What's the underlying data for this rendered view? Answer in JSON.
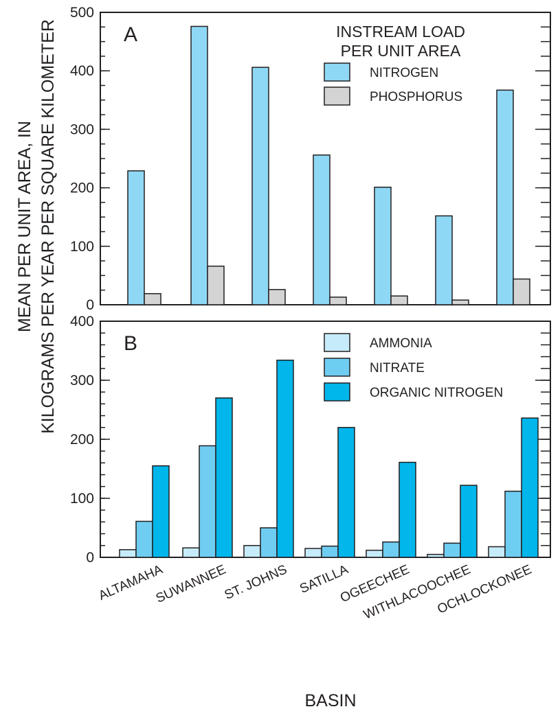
{
  "chart_data": [
    {
      "panel": "A",
      "type": "bar",
      "categories": [
        "ALTAMAHA",
        "SUWANNEE",
        "ST. JOHNS",
        "SATILLA",
        "OGEECHEE",
        "WITHLACOOCHEE",
        "OCHLOCKONEE"
      ],
      "legend_title": [
        "INSTREAM LOAD",
        "PER UNIT AREA"
      ],
      "series": [
        {
          "name": "NITROGEN",
          "color": "#8fd8f5",
          "values": [
            229,
            476,
            406,
            256,
            201,
            152,
            367
          ]
        },
        {
          "name": "PHOSPHORUS",
          "color": "#d4d4d4",
          "values": [
            19,
            66,
            26,
            13,
            15,
            8,
            44
          ]
        }
      ],
      "ylim": [
        0,
        500
      ],
      "yticks": [
        0,
        100,
        200,
        300,
        400,
        500
      ],
      "minor_tick_step": 25,
      "grid": false,
      "legend_position": "top-right"
    },
    {
      "panel": "B",
      "type": "bar",
      "categories": [
        "ALTAMAHA",
        "SUWANNEE",
        "ST. JOHNS",
        "SATILLA",
        "OGEECHEE",
        "WITHLACOOCHEE",
        "OCHLOCKONEE"
      ],
      "series": [
        {
          "name": "AMMONIA",
          "color": "#c6ebfa",
          "values": [
            13,
            16,
            20,
            15,
            12,
            5,
            18
          ]
        },
        {
          "name": "NITRATE",
          "color": "#6fcdf2",
          "values": [
            61,
            189,
            50,
            19,
            26,
            24,
            112
          ]
        },
        {
          "name": "ORGANIC NITROGEN",
          "color": "#00b6eb",
          "values": [
            155,
            270,
            334,
            220,
            161,
            122,
            236
          ]
        }
      ],
      "ylim": [
        0,
        400
      ],
      "yticks": [
        0,
        100,
        200,
        300,
        400
      ],
      "minor_tick_step": 20,
      "grid": false,
      "legend_position": "top-right"
    }
  ],
  "ylabel": [
    "MEAN PER UNIT AREA, IN",
    "KILOGRAMS PER YEAR PER SQUARE KILOMETER"
  ],
  "xlabel": "BASIN"
}
